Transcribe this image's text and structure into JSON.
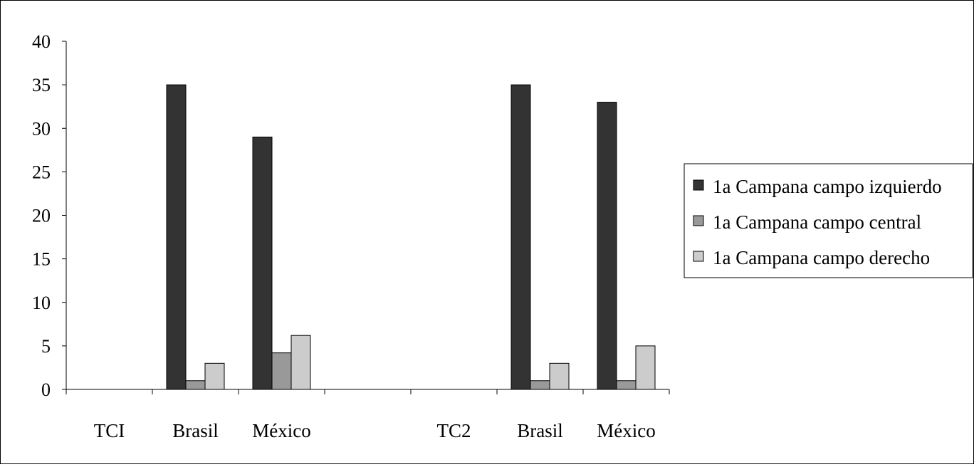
{
  "chart_data": {
    "type": "bar",
    "categories": [
      "TCI",
      "Brasil",
      "México",
      "",
      "TC2",
      "Brasil",
      "México"
    ],
    "series": [
      {
        "name": "1a Campana campo izquierdo",
        "color": "#333333",
        "values": [
          0,
          35,
          29,
          0,
          0,
          35,
          33
        ]
      },
      {
        "name": "1a Campana campo central",
        "color": "#999999",
        "values": [
          0,
          1,
          4.2,
          0,
          0,
          1,
          1
        ]
      },
      {
        "name": "1a Campana campo derecho",
        "color": "#cccccc",
        "values": [
          0,
          3,
          6.2,
          0,
          0,
          3,
          5
        ]
      }
    ],
    "y_ticks": [
      "0",
      "5",
      "10",
      "15",
      "20",
      "25",
      "30",
      "35",
      "40"
    ],
    "ylim": [
      0,
      40
    ],
    "grid": false,
    "legend_position": "right"
  }
}
